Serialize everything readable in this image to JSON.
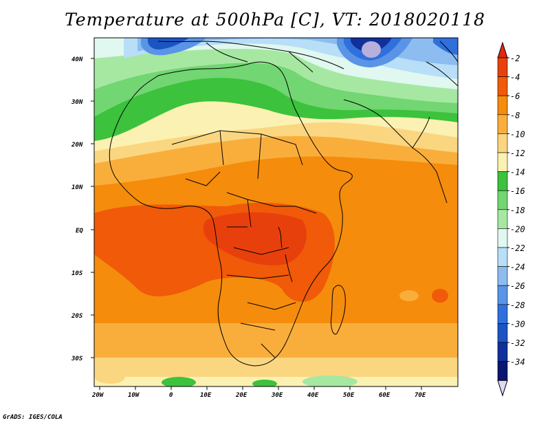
{
  "title": "Temperature at 500hPa [C], VT: 2018020118",
  "footer": "GrADS: IGES/COLA",
  "lat_labels": [
    "40N",
    "30N",
    "20N",
    "10N",
    "EQ",
    "10S",
    "20S",
    "30S"
  ],
  "lon_labels": [
    "20W",
    "10W",
    "0",
    "10E",
    "20E",
    "30E",
    "40E",
    "50E",
    "60E",
    "70E"
  ],
  "colorbar": {
    "labels": [
      "-2",
      "-4",
      "-6",
      "-8",
      "-10",
      "-12",
      "-14",
      "-16",
      "-18",
      "-20",
      "-22",
      "-24",
      "-26",
      "-28",
      "-30",
      "-32",
      "-34"
    ],
    "colors": [
      "#e8400c",
      "#f05a08",
      "#f58c0c",
      "#f9ae3c",
      "#fbd680",
      "#fbf1b2",
      "#3cc23c",
      "#72d672",
      "#a6e8a2",
      "#e0f8ef",
      "#b8def8",
      "#8cbcf0",
      "#5a94e6",
      "#3070dc",
      "#1c54c2",
      "#12309a",
      "#0a1670"
    ],
    "top_color": "#e4280c",
    "bottom_color": "#e0d8f6"
  },
  "colors": {
    "land_outline": "#000000",
    "warm": "#f58c0c",
    "hot": "#e8400c",
    "cool": "#5a94e6"
  }
}
